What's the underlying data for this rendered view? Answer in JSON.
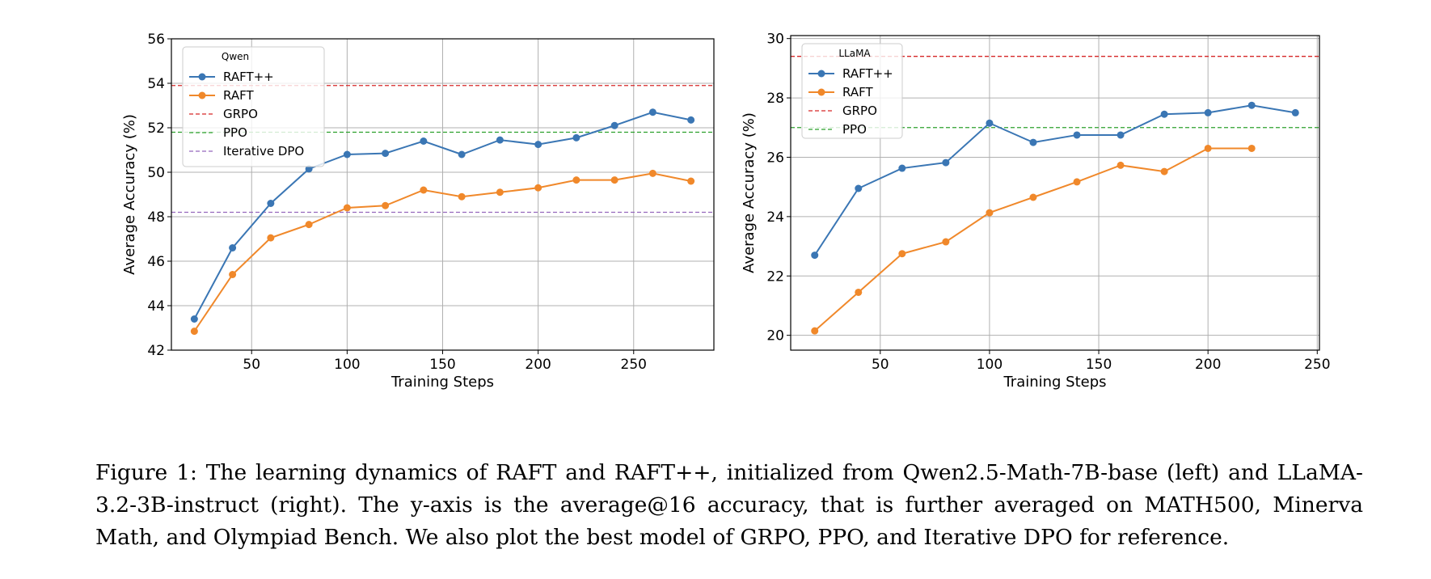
{
  "chart_data": [
    {
      "type": "line",
      "xlabel": "Training Steps",
      "ylabel": "Average Accuracy (%)",
      "xlim": [
        8,
        292
      ],
      "ylim": [
        42,
        56
      ],
      "xticks": [
        50,
        100,
        150,
        200,
        250
      ],
      "yticks": [
        42,
        44,
        46,
        48,
        50,
        52,
        54,
        56
      ],
      "grid": true,
      "legend": {
        "title": "Qwen",
        "position": "top-left"
      },
      "series": [
        {
          "name": "RAFT++",
          "color": "#3a76b4",
          "style": "line-marker",
          "x": [
            20,
            40,
            60,
            80,
            100,
            120,
            140,
            160,
            180,
            200,
            220,
            240,
            260,
            280
          ],
          "y": [
            43.4,
            46.6,
            48.6,
            50.15,
            50.8,
            50.85,
            51.4,
            50.8,
            51.45,
            51.25,
            51.55,
            52.1,
            52.7,
            52.35
          ]
        },
        {
          "name": "RAFT",
          "color": "#f0882a",
          "style": "line-marker",
          "x": [
            20,
            40,
            60,
            80,
            100,
            120,
            140,
            160,
            180,
            200,
            220,
            240,
            260,
            280
          ],
          "y": [
            42.85,
            45.4,
            47.05,
            47.65,
            48.4,
            48.5,
            49.2,
            48.9,
            49.1,
            49.3,
            49.65,
            49.65,
            49.95,
            49.6
          ]
        },
        {
          "name": "GRPO",
          "color": "#d62728",
          "style": "hline",
          "y": 53.9
        },
        {
          "name": "PPO",
          "color": "#2ca02c",
          "style": "hline",
          "y": 51.8
        },
        {
          "name": "Iterative DPO",
          "color": "#9467bd",
          "style": "hline",
          "y": 48.2
        }
      ]
    },
    {
      "type": "line",
      "xlabel": "Training Steps",
      "ylabel": "Average Accuracy (%)",
      "xlim": [
        9,
        251
      ],
      "ylim": [
        19.5,
        30.1
      ],
      "xticks": [
        50,
        100,
        150,
        200,
        250
      ],
      "yticks": [
        20,
        22,
        24,
        26,
        28,
        30
      ],
      "grid": true,
      "legend": {
        "title": "LLaMA",
        "position": "top-left"
      },
      "series": [
        {
          "name": "RAFT++",
          "color": "#3a76b4",
          "style": "line-marker",
          "x": [
            20,
            40,
            60,
            80,
            100,
            120,
            140,
            160,
            180,
            200,
            220,
            240
          ],
          "y": [
            22.7,
            24.95,
            25.63,
            25.82,
            27.15,
            26.5,
            26.75,
            26.75,
            27.45,
            27.5,
            27.75,
            27.5
          ]
        },
        {
          "name": "RAFT",
          "color": "#f0882a",
          "style": "line-marker",
          "x": [
            20,
            40,
            60,
            80,
            100,
            120,
            140,
            160,
            180,
            200,
            220
          ],
          "y": [
            20.15,
            21.45,
            22.75,
            23.15,
            24.13,
            24.65,
            25.17,
            25.73,
            25.52,
            26.3,
            26.3
          ]
        },
        {
          "name": "GRPO",
          "color": "#d62728",
          "style": "hline",
          "y": 29.4
        },
        {
          "name": "PPO",
          "color": "#2ca02c",
          "style": "hline",
          "y": 27.0
        }
      ]
    }
  ],
  "caption": "Figure 1: The learning dynamics of RAFT and RAFT++, initialized from Qwen2.5-Math-7B-base (left) and LLaMA-3.2-3B-instruct (right). The y-axis is the average@16 accuracy, that is further averaged on MATH500, Minerva Math, and Olympiad Bench. We also plot the best model of GRPO, PPO, and Iterative DPO for reference."
}
